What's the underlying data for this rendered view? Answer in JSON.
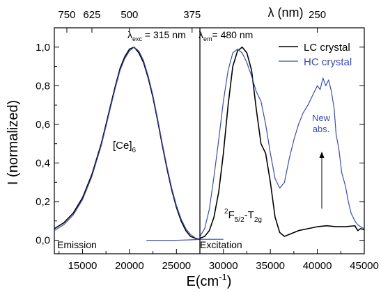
{
  "chart_data": {
    "type": "line",
    "x_axis": {
      "label": "E(cm",
      "label_sup": "-1",
      "label_close": ")",
      "range": [
        12000,
        45000
      ],
      "ticks": [
        15000,
        20000,
        25000,
        30000,
        35000,
        40000,
        45000
      ],
      "tick_labels": [
        "15000",
        "20000",
        "25000",
        "30000",
        "35000",
        "40000",
        "45000"
      ]
    },
    "top_axis": {
      "label": "λ (nm)",
      "ticks_nm": [
        750,
        625,
        500,
        375,
        250
      ],
      "tick_labels": [
        "750",
        "625",
        "500",
        "375",
        "250"
      ]
    },
    "y_axis": {
      "label": "I (normalized)",
      "range": [
        -0.07,
        1.1
      ],
      "ticks": [
        0.0,
        0.2,
        0.4,
        0.6,
        0.8,
        1.0
      ],
      "tick_labels": [
        "0,0",
        "0,2",
        "0,4",
        "0,6",
        "0,8",
        "1,0"
      ]
    },
    "legend": {
      "placement": "top-right",
      "entries": [
        "LC crystal",
        "HC crystal"
      ]
    },
    "divider_x": 27500,
    "series": [
      {
        "name": "LC crystal",
        "color": "#000000",
        "segments": [
          {
            "x": [
              12000,
              13000,
              14000,
              15000,
              16000,
              17000,
              17500,
              18000,
              18500,
              19000,
              19500,
              20000,
              20500,
              21000,
              21500,
              22000,
              22500,
              23000,
              23500,
              24000,
              24500,
              25000,
              25500,
              26000,
              26500,
              27000,
              27500
            ],
            "y": [
              0.06,
              0.09,
              0.14,
              0.22,
              0.34,
              0.5,
              0.6,
              0.7,
              0.8,
              0.89,
              0.95,
              0.99,
              1.0,
              0.97,
              0.92,
              0.84,
              0.74,
              0.62,
              0.49,
              0.37,
              0.26,
              0.17,
              0.1,
              0.05,
              0.02,
              0.01,
              0.005
            ]
          },
          {
            "x": [
              27500,
              28000,
              28500,
              29000,
              29500,
              30000,
              30500,
              31000,
              31500,
              32000,
              32500,
              33000,
              33500,
              34000,
              34500,
              35000,
              35500,
              36000,
              36500,
              37000,
              38000,
              39000,
              40000,
              41000,
              42000,
              43000,
              44000,
              44300,
              44600,
              45000
            ],
            "y": [
              0.01,
              0.02,
              0.05,
              0.12,
              0.25,
              0.45,
              0.7,
              0.9,
              0.98,
              1.0,
              0.97,
              0.88,
              0.68,
              0.5,
              0.45,
              0.3,
              0.12,
              0.04,
              0.02,
              0.03,
              0.05,
              0.06,
              0.07,
              0.075,
              0.07,
              0.07,
              0.075,
              0.05,
              0.06,
              0.055
            ]
          }
        ]
      },
      {
        "name": "HC crystal",
        "color": "#3a4dad",
        "segments": [
          {
            "x": [
              12000,
              13000,
              14000,
              15000,
              16000,
              17000,
              17500,
              18000,
              18500,
              19000,
              19500,
              20000,
              20500,
              21000,
              21500,
              22000,
              22500,
              23000,
              23500,
              24000,
              24500,
              25000,
              25500,
              26000,
              26500,
              27000,
              27500,
              28500,
              30000
            ],
            "y": [
              0.05,
              0.08,
              0.13,
              0.21,
              0.33,
              0.49,
              0.59,
              0.69,
              0.79,
              0.88,
              0.94,
              0.98,
              1.0,
              0.98,
              0.93,
              0.85,
              0.75,
              0.63,
              0.5,
              0.38,
              0.27,
              0.18,
              0.11,
              0.06,
              0.03,
              0.012,
              0.005,
              0.005,
              0.005
            ]
          },
          {
            "x": [
              21800,
              23000,
              25000,
              26500,
              27500
            ],
            "y": [
              0.0,
              0.0,
              0.0,
              0.002,
              0.004
            ]
          },
          {
            "x": [
              27500,
              28000,
              28500,
              29000,
              29500,
              30000,
              30500,
              31000,
              31500,
              32000,
              32500,
              33000,
              33500,
              34000,
              34500,
              35000,
              35500,
              36000,
              36500,
              37000,
              37500,
              38000,
              38500,
              39000,
              39500,
              40000,
              40300,
              40600,
              40900,
              41200,
              41500,
              41800,
              42000,
              42300,
              42600,
              43000,
              43300,
              43600,
              44000,
              44300,
              44600,
              45000
            ],
            "y": [
              0.02,
              0.06,
              0.16,
              0.33,
              0.52,
              0.72,
              0.88,
              0.97,
              0.99,
              0.97,
              0.92,
              0.85,
              0.77,
              0.72,
              0.6,
              0.45,
              0.32,
              0.27,
              0.3,
              0.42,
              0.52,
              0.6,
              0.66,
              0.7,
              0.75,
              0.8,
              0.78,
              0.84,
              0.8,
              0.83,
              0.77,
              0.68,
              0.55,
              0.47,
              0.35,
              0.28,
              0.2,
              0.14,
              0.1,
              0.08,
              0.07,
              0.06
            ]
          }
        ]
      }
    ],
    "annotations": {
      "lambda_exc": {
        "prefix": "λ",
        "sub": "exc",
        "text": " = 315 nm"
      },
      "lambda_em": {
        "prefix": "λ",
        "sub": "em",
        "text": "= 480 nm"
      },
      "ce": {
        "text": "[Ce]",
        "sub": "6"
      },
      "transition": {
        "sup": "2",
        "a": "F",
        "sub1": "5/2",
        "b": "-T",
        "sub2": "2g"
      },
      "new_abs_line1": "New",
      "new_abs_line2": "abs.",
      "emission": "Emission",
      "excitation": "Excitation"
    }
  }
}
